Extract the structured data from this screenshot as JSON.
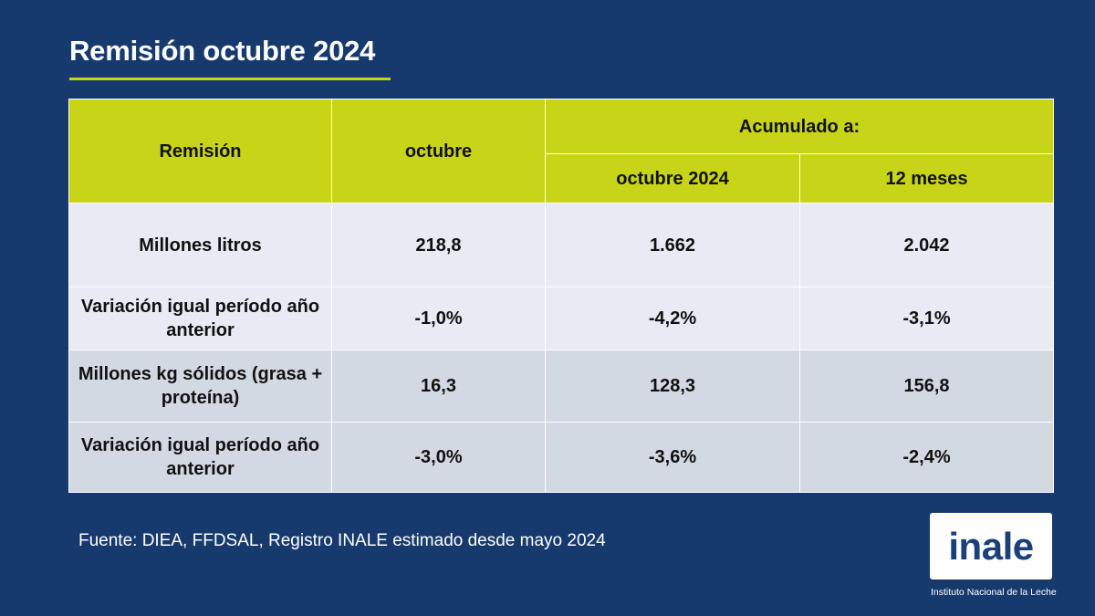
{
  "slide": {
    "title": "Remisión octubre 2024"
  },
  "table": {
    "header": {
      "remision": "Remisión",
      "octubre": "octubre",
      "acumulado": "Acumulado a:",
      "acum_octubre": "octubre 2024",
      "acum_12": "12 meses"
    },
    "rows": [
      {
        "label": "Millones litros",
        "octubre": "218,8",
        "acum_octubre": "1.662",
        "acum_12": "2.042"
      },
      {
        "label": "Variación igual período año anterior",
        "octubre": "-1,0%",
        "acum_octubre": "-4,2%",
        "acum_12": "-3,1%"
      },
      {
        "label": "Millones kg sólidos (grasa + proteína)",
        "octubre": "16,3",
        "acum_octubre": "128,3",
        "acum_12": "156,8"
      },
      {
        "label": "Variación igual período año anterior",
        "octubre": "-3,0%",
        "acum_octubre": "-3,6%",
        "acum_12": "-2,4%"
      }
    ]
  },
  "footer": {
    "source": "Fuente: DIEA, FFDSAL, Registro INALE estimado desde mayo 2024"
  },
  "logo": {
    "word": "inale",
    "subtitle": "Instituto Nacional de la Leche"
  },
  "colors": {
    "background": "#173a6e",
    "accent": "#c8d417",
    "row_light": "#e8ebf4",
    "row_dark": "#d3d9e3"
  }
}
